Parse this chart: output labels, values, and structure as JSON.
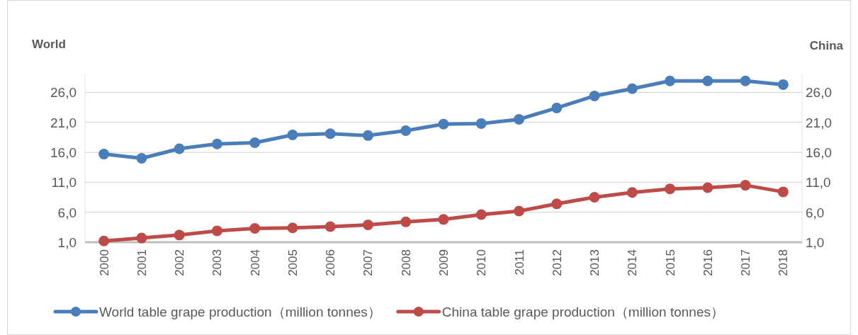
{
  "chart_data": {
    "type": "line",
    "ylabel": "World",
    "y2label": "China",
    "categories": [
      "2000",
      "2001",
      "2002",
      "2003",
      "2004",
      "2005",
      "2006",
      "2007",
      "2008",
      "2009",
      "2010",
      "2011",
      "2012",
      "2013",
      "2014",
      "2015",
      "2016",
      "2017",
      "2018"
    ],
    "series": [
      {
        "name": "World table grape production（million tonnes）",
        "color": "#4a7ebb",
        "values": [
          15.7,
          15.0,
          16.6,
          17.4,
          17.6,
          18.9,
          19.1,
          18.8,
          19.6,
          20.7,
          20.8,
          21.5,
          23.4,
          25.4,
          26.6,
          27.9,
          27.9,
          27.9,
          27.3
        ]
      },
      {
        "name": "China table grape production（million tonnes）",
        "color": "#be4b48",
        "axis": "y2",
        "values": [
          1.2,
          1.7,
          2.2,
          2.9,
          3.3,
          3.4,
          3.6,
          3.9,
          4.4,
          4.8,
          5.6,
          6.2,
          7.4,
          8.5,
          9.3,
          9.9,
          10.1,
          10.5,
          9.4
        ]
      }
    ],
    "ylim": [
      1,
      29
    ],
    "yticks": [
      {
        "value": 1,
        "label": "1,0"
      },
      {
        "value": 6,
        "label": "6,0"
      },
      {
        "value": 11,
        "label": "11,0"
      },
      {
        "value": 16,
        "label": "16,0"
      },
      {
        "value": 21,
        "label": "21,0"
      },
      {
        "value": 26,
        "label": "26,0"
      }
    ],
    "y2lim": [
      1,
      29
    ],
    "y2ticks": [
      {
        "value": 1,
        "label": "1,0"
      },
      {
        "value": 6,
        "label": "6,0"
      },
      {
        "value": 11,
        "label": "11,0"
      },
      {
        "value": 16,
        "label": "16,0"
      },
      {
        "value": 21,
        "label": "21,0"
      },
      {
        "value": 26,
        "label": "26,0"
      }
    ],
    "grid": "y",
    "legend": "bottom",
    "marker": "circle",
    "line_style": "solid"
  }
}
